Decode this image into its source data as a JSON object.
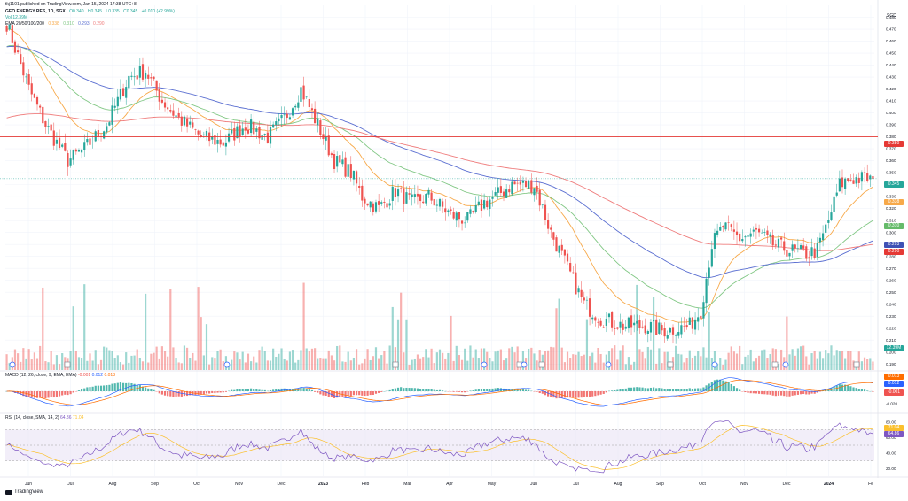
{
  "header": {
    "author_line": "tkj1101 published on TradingView.com, Jan 15, 2024 17:38 UTC+8",
    "symbol_line": "GEO ENERGY RES, 1D, SGX",
    "ohlc": [
      "O0.340",
      "H0.345",
      "L0.335",
      "C0.345",
      "+0.010 (+2.99%)"
    ],
    "volume_line": "Vol 12.39M",
    "ema_line": "EMA 20/50/100/200",
    "ema_values": [
      "0.338",
      "0.310",
      "0.293",
      "0.290"
    ],
    "currency": "SGD"
  },
  "colors": {
    "up": "#26a69a",
    "down": "#ef5350",
    "ema20": "#f7a94a",
    "ema50": "#81c784",
    "ema100": "#5b6fd1",
    "ema200": "#ef7d7d",
    "hline": "#e53935",
    "macd": "#2962ff",
    "signal": "#ff6d00",
    "rsi": "#7e57c2",
    "rsi_ma": "#fbc02d"
  },
  "chart_data": [
    {
      "type": "candlestick",
      "title": "GEO ENERGY RES, 1D, SGX",
      "ylim": [
        0.185,
        0.49
      ],
      "y_ticks": [
        0.19,
        0.2,
        0.21,
        0.22,
        0.23,
        0.24,
        0.25,
        0.26,
        0.27,
        0.28,
        0.29,
        0.3,
        0.31,
        0.32,
        0.33,
        0.34,
        0.35,
        0.36,
        0.37,
        0.38,
        0.39,
        0.4,
        0.41,
        0.42,
        0.43,
        0.44,
        0.45,
        0.46,
        0.47,
        0.48
      ],
      "y_tick_labels": [
        "0.190",
        "0.200",
        "0.210",
        "0.220",
        "0.230",
        "0.240",
        "0.250",
        "0.260",
        "0.270",
        "0.280",
        "0.290",
        "0.300",
        "0.310",
        "0.320",
        "0.330",
        "0.340",
        "0.350",
        "0.360",
        "0.370",
        "0.380",
        "0.390",
        "0.400",
        "0.410",
        "0.420",
        "0.430",
        "0.440",
        "0.450",
        "0.460",
        "0.470",
        "0.480"
      ],
      "x_labels": [
        "Jun",
        "Jul",
        "Aug",
        "Sep",
        "Oct",
        "Nov",
        "Dec",
        "2023",
        "Feb",
        "Mar",
        "Apr",
        "May",
        "Jun",
        "Jul",
        "Aug",
        "Sep",
        "Oct",
        "Nov",
        "Dec",
        "2024",
        "Fe"
      ],
      "price_key_points": [
        [
          0,
          0.475
        ],
        [
          8,
          0.42
        ],
        [
          14,
          0.39
        ],
        [
          22,
          0.36
        ],
        [
          28,
          0.37
        ],
        [
          36,
          0.39
        ],
        [
          44,
          0.43
        ],
        [
          50,
          0.435
        ],
        [
          56,
          0.41
        ],
        [
          62,
          0.395
        ],
        [
          70,
          0.38
        ],
        [
          78,
          0.375
        ],
        [
          86,
          0.39
        ],
        [
          94,
          0.38
        ],
        [
          100,
          0.395
        ],
        [
          106,
          0.42
        ],
        [
          112,
          0.39
        ],
        [
          118,
          0.36
        ],
        [
          124,
          0.35
        ],
        [
          128,
          0.33
        ],
        [
          134,
          0.32
        ],
        [
          140,
          0.335
        ],
        [
          146,
          0.325
        ],
        [
          152,
          0.33
        ],
        [
          160,
          0.315
        ],
        [
          166,
          0.31
        ],
        [
          172,
          0.325
        ],
        [
          176,
          0.33
        ],
        [
          182,
          0.34
        ],
        [
          190,
          0.34
        ],
        [
          196,
          0.3
        ],
        [
          202,
          0.27
        ],
        [
          208,
          0.24
        ],
        [
          214,
          0.228
        ],
        [
          222,
          0.222
        ],
        [
          230,
          0.222
        ],
        [
          236,
          0.218
        ],
        [
          242,
          0.22
        ],
        [
          246,
          0.222
        ],
        [
          250,
          0.235
        ],
        [
          254,
          0.29
        ],
        [
          258,
          0.305
        ],
        [
          264,
          0.295
        ],
        [
          270,
          0.3
        ],
        [
          276,
          0.29
        ],
        [
          282,
          0.285
        ],
        [
          288,
          0.282
        ],
        [
          292,
          0.285
        ],
        [
          296,
          0.31
        ],
        [
          300,
          0.34
        ],
        [
          304,
          0.345
        ],
        [
          312,
          0.345
        ]
      ],
      "ema_last": {
        "ema20": 0.338,
        "ema50": 0.31,
        "ema100": 0.293,
        "ema200": 0.29
      },
      "horizontal_line": 0.38,
      "last_price": 0.345,
      "last_price_label": "0.345",
      "horizontal_line_label": "0.380",
      "volume_last_label": "12.39M",
      "volume_note": "volume histogram along the bottom of the price pane"
    },
    {
      "type": "line",
      "label": "MACD (12, 26, close, 9, EMA, EMA)",
      "label_values": [
        "-0.001",
        "0.012",
        "0.013"
      ],
      "y_ticks": [
        0,
        -0.02
      ],
      "y_tick_labels": [
        "0.000",
        "-0.020"
      ],
      "badges": [
        "0.013",
        "0.012",
        "-0.001"
      ]
    },
    {
      "type": "line",
      "label": "RSI (14, close, SMA, 14, 2)",
      "label_values": [
        "64.86",
        "71.04"
      ],
      "y_ticks": [
        80,
        60,
        40,
        20
      ],
      "y_tick_labels": [
        "80.00",
        "60.00",
        "40.00",
        "20.00"
      ],
      "band": [
        40,
        60
      ],
      "badges": [
        "71.04",
        "64.86"
      ]
    }
  ],
  "footer": {
    "brand": "TradingView"
  }
}
